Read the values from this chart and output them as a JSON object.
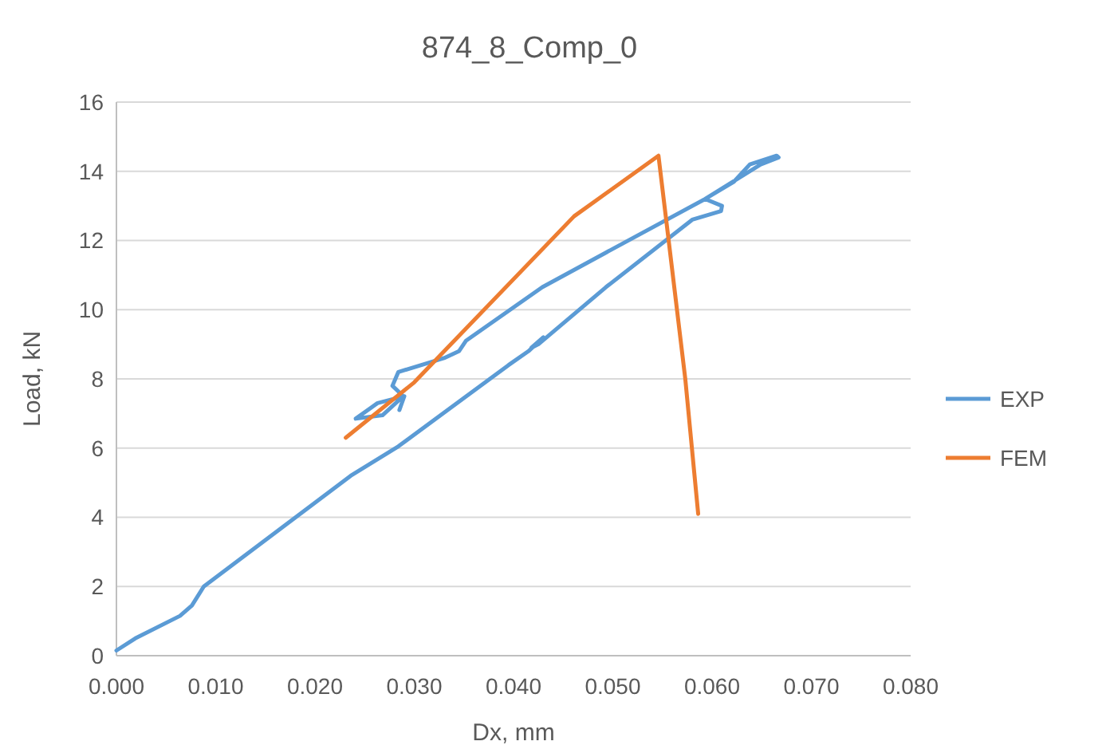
{
  "chart_data": {
    "type": "line",
    "title": "874_8_Comp_0",
    "xlabel": "Dx, mm",
    "ylabel": "Load, kN",
    "xlim": [
      0,
      0.08
    ],
    "xticks": [
      {
        "value": 0,
        "label": "0.000"
      },
      {
        "value": 0.01,
        "label": "0.010"
      },
      {
        "value": 0.02,
        "label": "0.020"
      },
      {
        "value": 0.03,
        "label": "0.030"
      },
      {
        "value": 0.04,
        "label": "0.040"
      },
      {
        "value": 0.05,
        "label": "0.050"
      },
      {
        "value": 0.06,
        "label": "0.060"
      },
      {
        "value": 0.07,
        "label": "0.070"
      },
      {
        "value": 0.08,
        "label": "0.080"
      }
    ],
    "ylim": [
      0,
      16
    ],
    "yticks": [
      0,
      2,
      4,
      6,
      8,
      10,
      12,
      14,
      16
    ],
    "grid": "y",
    "legend": "right",
    "marker": "none",
    "line_style": "solid",
    "series": [
      {
        "name": "EXP",
        "color": "#5b9bd5",
        "x": [
          0,
          0.0019,
          0.0064,
          0.0076,
          0.0088,
          0.0236,
          0.0284,
          0.0395,
          0.0415,
          0.043,
          0.0418,
          0.0425,
          0.0493,
          0.058,
          0.0609,
          0.061,
          0.0593,
          0.0622,
          0.0638,
          0.0665,
          0.0667,
          0.0649,
          0.0593,
          0.0493,
          0.0429,
          0.0352,
          0.0345,
          0.033,
          0.0284,
          0.0278,
          0.0289,
          0.0268,
          0.0241,
          0.0263,
          0.029,
          0.0285
        ],
        "values": [
          0.15,
          0.5,
          1.15,
          1.45,
          2.0,
          5.2,
          6.05,
          8.4,
          8.8,
          9.2,
          8.9,
          9.0,
          10.65,
          12.6,
          12.85,
          13.0,
          13.2,
          13.7,
          14.2,
          14.45,
          14.4,
          14.2,
          13.2,
          11.65,
          10.65,
          9.1,
          8.8,
          8.6,
          8.2,
          7.8,
          7.5,
          6.95,
          6.85,
          7.3,
          7.5,
          7.1
        ]
      },
      {
        "name": "FEM",
        "color": "#ed7d31",
        "x": [
          0.0231,
          0.03,
          0.0461,
          0.0546,
          0.0573,
          0.0586
        ],
        "values": [
          6.3,
          7.9,
          12.7,
          14.45,
          8.0,
          4.1
        ]
      }
    ]
  }
}
